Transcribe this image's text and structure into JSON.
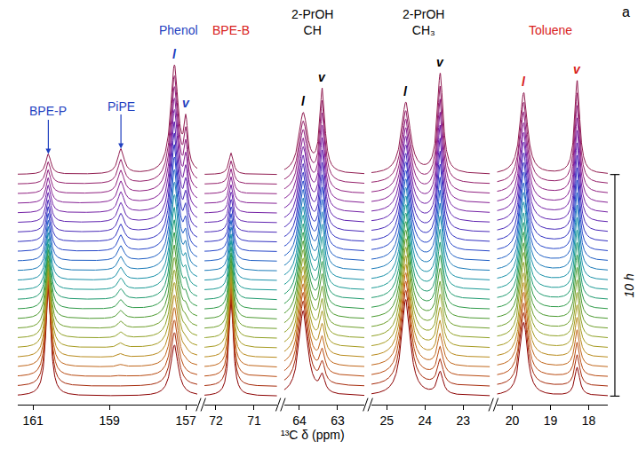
{
  "chart_data": {
    "type": "line",
    "x_label": "¹³C δ (ppm)",
    "panel": "a",
    "time_label": "10 h",
    "tick_labels": "x",
    "grid": false,
    "ylim": [
      -0.15,
      6.3
    ],
    "segments": [
      {
        "xlim": [
          161.4,
          156.7
        ],
        "xticks": [
          161,
          159,
          157
        ]
      },
      {
        "xlim": [
          72.3,
          70.4
        ],
        "xticks": [
          72,
          71
        ]
      },
      {
        "xlim": [
          64.4,
          62.3
        ],
        "xticks": [
          64,
          63
        ]
      },
      {
        "xlim": [
          25.4,
          22.3
        ],
        "xticks": [
          25,
          24,
          23
        ]
      },
      {
        "xlim": [
          20.4,
          17.5
        ],
        "xticks": [
          20,
          19,
          18
        ]
      }
    ],
    "colors": [
      "#8b0000",
      "#a52a0a",
      "#b84a10",
      "#c0661a",
      "#b88a1c",
      "#a69a20",
      "#8fa024",
      "#6e9e2a",
      "#4c9a30",
      "#2e9a48",
      "#1e9a6e",
      "#1a9a94",
      "#1890a8",
      "#1a7ab8",
      "#1f5fc4",
      "#2545c8",
      "#3030c0",
      "#4828b8",
      "#6024b0",
      "#7420a4",
      "#852094",
      "#902080",
      "#94206a",
      "#901c50"
    ],
    "peaks": [
      {
        "x": 160.6,
        "width": 0.08,
        "heights": [
          1.9,
          1.8,
          1.7,
          1.6,
          1.5,
          1.4,
          1.3,
          1.2,
          1.12,
          1.05,
          0.98,
          0.9,
          0.84,
          0.78,
          0.72,
          0.67,
          0.62,
          0.57,
          0.53,
          0.49,
          0.45,
          0.42,
          0.39,
          0.36
        ]
      },
      {
        "x": 158.7,
        "width": 0.1,
        "heights": [
          0,
          0,
          0.02,
          0.04,
          0.06,
          0.08,
          0.1,
          0.12,
          0.14,
          0.16,
          0.18,
          0.2,
          0.22,
          0.24,
          0.26,
          0.28,
          0.3,
          0.32,
          0.34,
          0.36,
          0.38,
          0.4,
          0.42,
          0.44
        ]
      },
      {
        "x": 157.3,
        "width": 0.12,
        "heights": [
          0.9,
          0.95,
          1.0,
          1.05,
          1.1,
          1.15,
          1.2,
          1.25,
          1.3,
          1.35,
          1.4,
          1.45,
          1.5,
          1.55,
          1.6,
          1.65,
          1.7,
          1.73,
          1.76,
          1.8,
          1.83,
          1.86,
          1.88,
          1.9
        ]
      },
      {
        "x": 157.0,
        "width": 0.06,
        "heights": [
          0,
          0,
          0,
          0.02,
          0.04,
          0.06,
          0.08,
          0.1,
          0.13,
          0.16,
          0.2,
          0.24,
          0.28,
          0.32,
          0.36,
          0.4,
          0.45,
          0.5,
          0.55,
          0.6,
          0.65,
          0.7,
          0.75,
          0.8
        ]
      },
      {
        "x": 71.6,
        "width": 0.07,
        "heights": [
          1.7,
          1.62,
          1.54,
          1.46,
          1.38,
          1.3,
          1.22,
          1.14,
          1.07,
          1.0,
          0.94,
          0.88,
          0.82,
          0.77,
          0.72,
          0.67,
          0.62,
          0.58,
          0.54,
          0.5,
          0.47,
          0.44,
          0.41,
          0.38
        ]
      },
      {
        "x": 63.9,
        "width": 0.14,
        "heights": [
          1.5,
          1.5,
          1.48,
          1.46,
          1.44,
          1.42,
          1.4,
          1.38,
          1.36,
          1.34,
          1.32,
          1.3,
          1.28,
          1.26,
          1.24,
          1.22,
          1.2,
          1.18,
          1.16,
          1.14,
          1.12,
          1.1,
          1.08,
          1.06
        ]
      },
      {
        "x": 63.4,
        "width": 0.08,
        "heights": [
          0.3,
          0.35,
          0.4,
          0.45,
          0.5,
          0.55,
          0.6,
          0.65,
          0.7,
          0.75,
          0.8,
          0.85,
          0.9,
          0.95,
          1.0,
          1.05,
          1.1,
          1.15,
          1.2,
          1.25,
          1.3,
          1.35,
          1.4,
          1.45
        ]
      },
      {
        "x": 24.5,
        "width": 0.14,
        "heights": [
          1.7,
          1.69,
          1.68,
          1.66,
          1.64,
          1.62,
          1.6,
          1.58,
          1.56,
          1.54,
          1.52,
          1.5,
          1.48,
          1.46,
          1.44,
          1.42,
          1.4,
          1.38,
          1.36,
          1.34,
          1.32,
          1.3,
          1.28,
          1.26
        ]
      },
      {
        "x": 23.6,
        "width": 0.09,
        "heights": [
          0.4,
          0.45,
          0.5,
          0.56,
          0.62,
          0.68,
          0.74,
          0.8,
          0.86,
          0.92,
          0.98,
          1.04,
          1.1,
          1.16,
          1.22,
          1.28,
          1.34,
          1.4,
          1.46,
          1.52,
          1.58,
          1.64,
          1.7,
          1.76
        ]
      },
      {
        "x": 19.7,
        "width": 0.12,
        "heights": [
          1.3,
          1.3,
          1.3,
          1.32,
          1.32,
          1.32,
          1.34,
          1.34,
          1.34,
          1.36,
          1.36,
          1.36,
          1.38,
          1.38,
          1.38,
          1.4,
          1.4,
          1.4,
          1.42,
          1.42,
          1.42,
          1.44,
          1.44,
          1.44
        ]
      },
      {
        "x": 18.3,
        "width": 0.08,
        "heights": [
          0.5,
          0.55,
          0.6,
          0.65,
          0.7,
          0.75,
          0.8,
          0.85,
          0.9,
          0.95,
          1.0,
          1.05,
          1.1,
          1.15,
          1.2,
          1.25,
          1.3,
          1.35,
          1.4,
          1.45,
          1.5,
          1.55,
          1.6,
          1.65
        ]
      }
    ],
    "annotations": [
      {
        "text": "BPE-P",
        "x": 160.6,
        "color": "#1f3fbf",
        "line_style": "arrow"
      },
      {
        "text": "PiPE",
        "x": 158.7,
        "color": "#1f3fbf",
        "line_style": "arrow"
      },
      {
        "text": "Phenol",
        "x": 157.2,
        "color": "#1f3fbf"
      },
      {
        "text": "l",
        "x": 157.3,
        "color": "#1f3fbf"
      },
      {
        "text": "v",
        "x": 157.0,
        "color": "#1f3fbf"
      },
      {
        "text": "BPE-B",
        "x": 71.6,
        "color": "#d8201a"
      },
      {
        "text": "2-PrOH\nCH",
        "x": 63.65,
        "color": "#000000"
      },
      {
        "text": "l",
        "x": 63.9,
        "color": "#000000"
      },
      {
        "text": "v",
        "x": 63.4,
        "color": "#000000"
      },
      {
        "text": "2-PrOH\nCH₃",
        "x": 24.05,
        "color": "#000000"
      },
      {
        "text": "l",
        "x": 24.5,
        "color": "#000000"
      },
      {
        "text": "v",
        "x": 23.6,
        "color": "#000000"
      },
      {
        "text": "Toluene",
        "x": 19.0,
        "color": "#d8201a"
      },
      {
        "text": "l",
        "x": 19.7,
        "color": "#d8201a"
      },
      {
        "text": "v",
        "x": 18.3,
        "color": "#d8201a"
      }
    ]
  }
}
